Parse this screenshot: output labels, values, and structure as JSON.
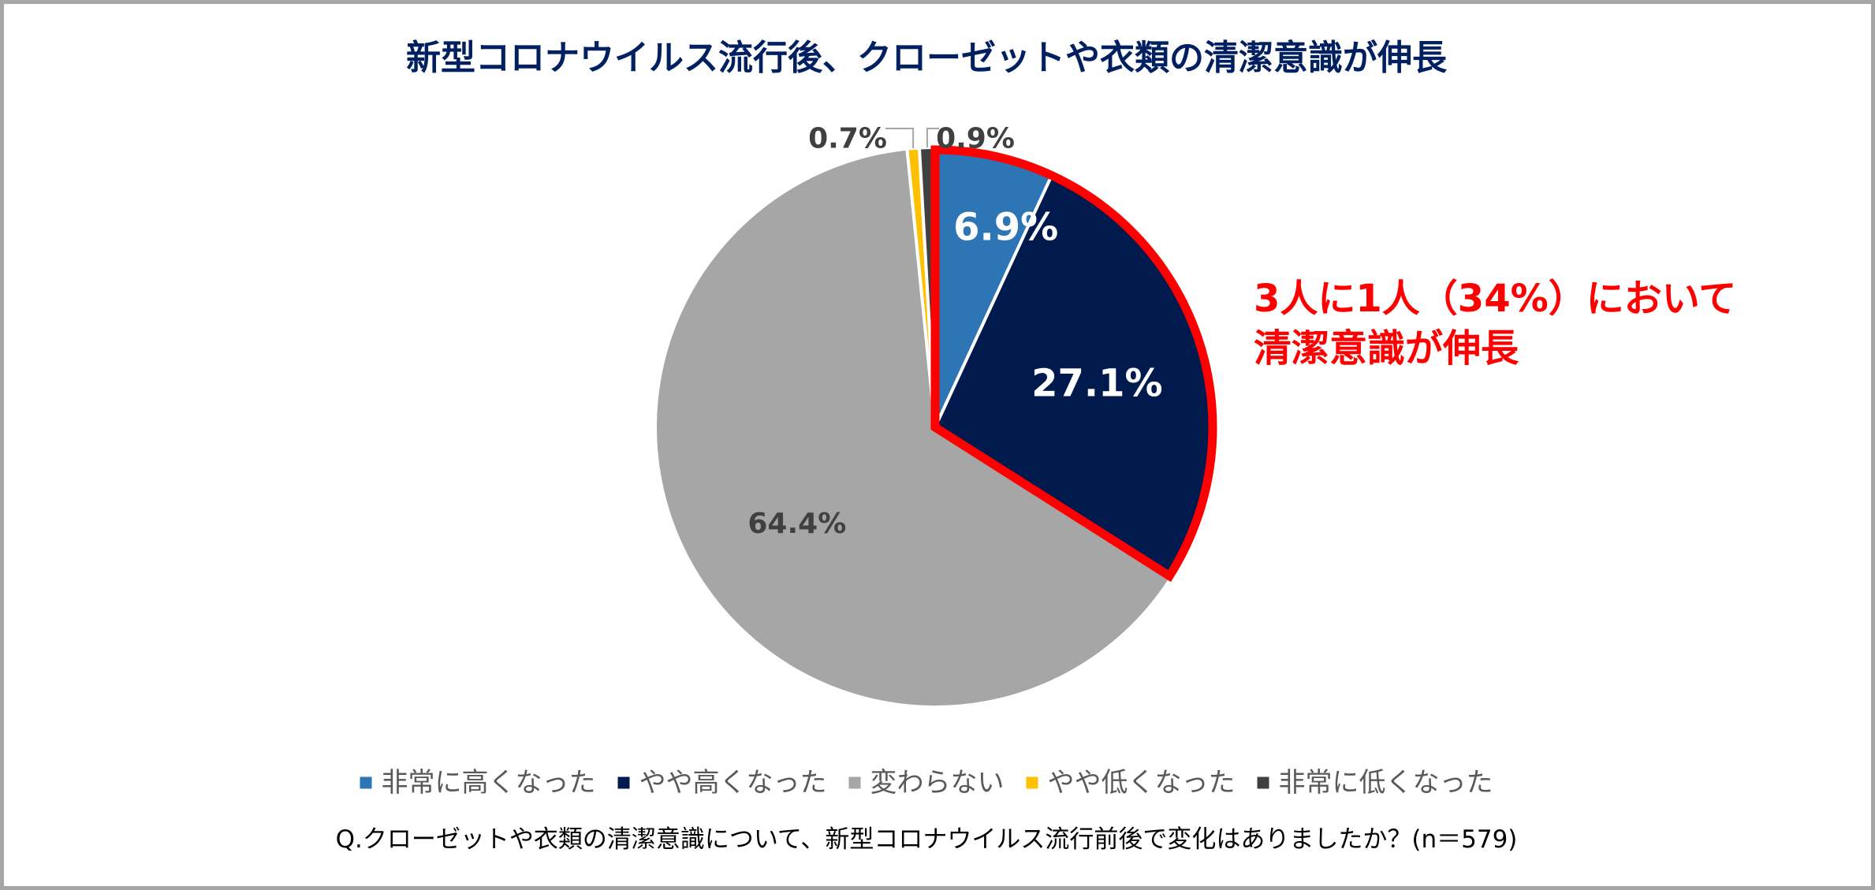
{
  "chart_data": {
    "type": "pie",
    "title": "新型コロナウイルス流行後、クローゼットや衣類の清潔意識が伸長",
    "categories": [
      "非常に高くなった",
      "やや高くなった",
      "変わらない",
      "やや低くなった",
      "非常に低くなった"
    ],
    "values": [
      6.9,
      27.1,
      64.4,
      0.7,
      0.9
    ],
    "data_labels": [
      "6.9%",
      "27.1%",
      "64.4%",
      "0.7%",
      "0.9%"
    ],
    "colors": [
      "#2e75b6",
      "#001a4e",
      "#a6a6a6",
      "#ffc000",
      "#404040"
    ],
    "label_colors": [
      "#ffffff",
      "#ffffff",
      "#404040",
      "#404040",
      "#404040"
    ],
    "start_angle_deg": 0,
    "direction": "clockwise",
    "highlight": {
      "slices": [
        0,
        1
      ],
      "outline_color": "#ff0000",
      "annotation_lines": [
        "3人に1人（34%）において",
        "清潔意識が伸長"
      ]
    },
    "legend_position": "bottom",
    "footnote": "Q.クローゼットや衣類の清潔意識について、新型コロナウイルス流行前後で変化はありましたか？(n＝579)"
  }
}
